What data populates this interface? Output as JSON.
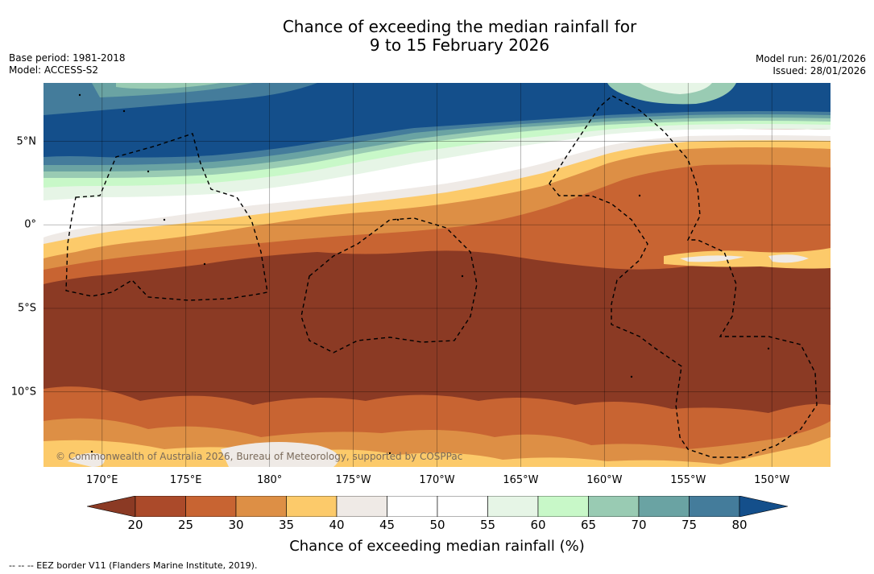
{
  "title": {
    "line1": "Chance of exceeding the median rainfall for",
    "line2": "9 to 15 February 2026"
  },
  "meta": {
    "base_period": "Base period: 1981-2018",
    "model": "Model: ACCESS-S2",
    "model_run": "Model run: 26/01/2026",
    "issued": "Issued: 28/01/2026"
  },
  "map": {
    "copyright": "© Commonwealth of Australia 2026, Bureau of Meteorology, supported by COSPPac",
    "lat_labels": [
      "5°N",
      "0°",
      "5°S",
      "10°S"
    ],
    "lon_labels": [
      "170°E",
      "175°E",
      "180°",
      "175°W",
      "170°W",
      "165°W",
      "160°W",
      "155°W",
      "150°W"
    ],
    "lon_range": [
      166.5,
      213.5
    ],
    "lat_range": [
      -14.5,
      8.5
    ],
    "grid_lons": [
      170,
      175,
      180,
      185,
      190,
      195,
      200,
      205,
      210
    ],
    "grid_lats": [
      5,
      0,
      -5,
      -10
    ]
  },
  "legend": {
    "ticks": [
      "20",
      "25",
      "30",
      "35",
      "40",
      "45",
      "50",
      "55",
      "60",
      "65",
      "70",
      "75",
      "80"
    ],
    "title": "Chance of exceeding median rainfall (%)",
    "colors": [
      "#8b3a24",
      "#ab4a2a",
      "#c86432",
      "#dd8f45",
      "#fcca6a",
      "#efeae6",
      "#ffffff",
      "#ffffff",
      "#e6f5e6",
      "#c8f8c8",
      "#99cbb3",
      "#6aa3a3",
      "#447c9b",
      "#144f8b"
    ],
    "low_color": "#8b3a24",
    "high_color": "#144f8b"
  },
  "footnote": "--  --  -- EEZ border V11 (Flanders Marine Institute, 2019)."
}
